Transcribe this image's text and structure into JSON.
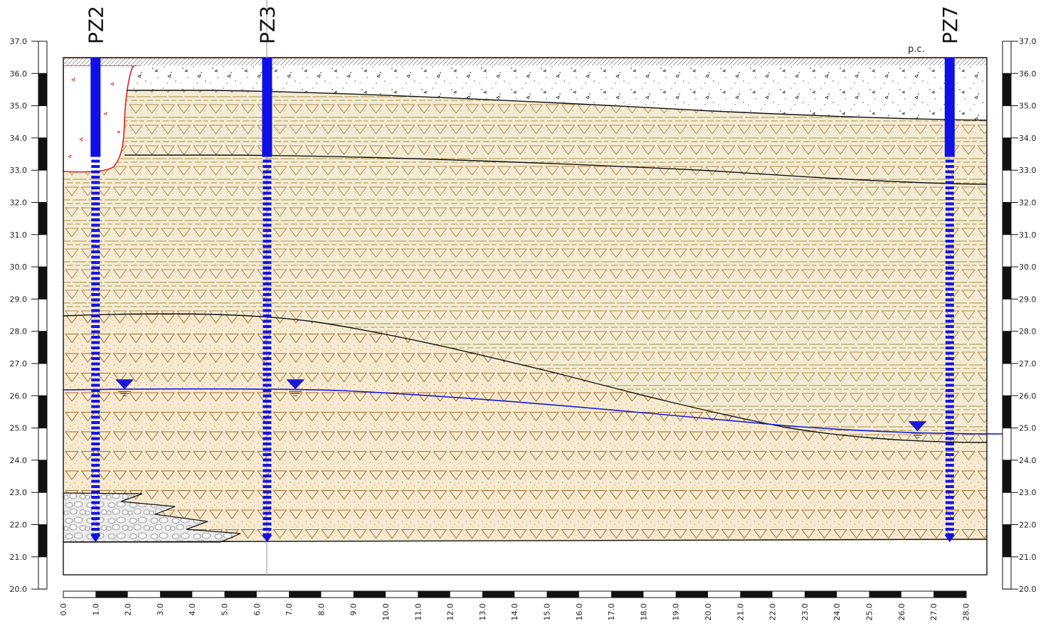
{
  "section": {
    "ground_label": "p.c.",
    "elevation_ticks": [
      "37.0",
      "36.0",
      "35.0",
      "34.0",
      "33.0",
      "32.0",
      "31.0",
      "30.0",
      "29.0",
      "28.0",
      "27.0",
      "26.0",
      "25.0",
      "24.0",
      "23.0",
      "22.0",
      "21.0",
      "20.0"
    ],
    "distance_ticks": [
      "0.0",
      "1.0",
      "2.0",
      "3.0",
      "4.0",
      "5.0",
      "6.0",
      "7.0",
      "8.0",
      "9.0",
      "10.0",
      "11.0",
      "12.0",
      "13.0",
      "14.0",
      "15.0",
      "16.0",
      "17.0",
      "18.0",
      "19.0",
      "20.0",
      "21.0",
      "22.0",
      "23.0",
      "24.0",
      "25.0",
      "26.0",
      "27.0",
      "28.0"
    ],
    "piezometers": [
      {
        "label": "PZ2",
        "distance": 1.0,
        "blind_to": 33.5,
        "bottom": 21.5
      },
      {
        "label": "PZ3",
        "distance": 6.3,
        "blind_to": 33.5,
        "bottom": 21.5
      },
      {
        "label": "PZ7",
        "distance": 27.5,
        "blind_to": 33.5,
        "bottom": 21.5
      }
    ],
    "water_level_markers": [
      {
        "distance": 1.9,
        "level": 26.2
      },
      {
        "distance": 7.2,
        "level": 26.2
      },
      {
        "distance": 26.5,
        "level": 24.9
      }
    ],
    "colors": {
      "piezometer": "#1010e6",
      "water_table": "#1a1ad8",
      "fill_layer": "#ededf0",
      "silt_layer": "#f3ecd4",
      "sand_layer": "#f6ebd2",
      "gravel_layer": "#e6e6e6",
      "ground_surface": "#c8743a",
      "excavation": "#e02020"
    }
  }
}
